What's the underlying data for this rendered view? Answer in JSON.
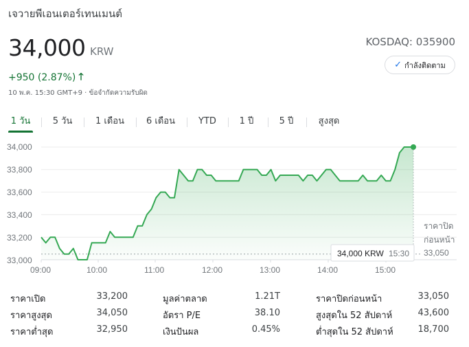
{
  "company_name": "เจวายพีเอนเตอร์เทนเมนต์",
  "price": "34,000",
  "currency": "KRW",
  "exchange": "KOSDAQ: 035900",
  "follow_label": "กำลังติดตาม",
  "change": "+950 (2.87%)",
  "timestamp": "10 พ.ค. 15:30 GMT+9 · ข้อจำกัดความรับผิด",
  "tabs": [
    "1 วัน",
    "5 วัน",
    "1 เดือน",
    "6 เดือน",
    "YTD",
    "1 ปี",
    "5 ปี",
    "สูงสุด"
  ],
  "active_tab": "1 วัน",
  "colors": {
    "up": "#137333",
    "line": "#34a853",
    "accent": "#1a73e8"
  },
  "icons": {
    "follow": "check-icon",
    "change": "arrow-up-icon"
  },
  "chart_data": {
    "type": "line",
    "y_ticks": [
      "34,000",
      "33,800",
      "33,600",
      "33,400",
      "33,200",
      "33,000"
    ],
    "x_ticks": [
      "09:00",
      "10:00",
      "11:00",
      "12:00",
      "13:00",
      "14:00",
      "15:00"
    ],
    "ylim": [
      33000,
      34000
    ],
    "xlim": [
      0,
      400
    ],
    "x": [
      0,
      5,
      10,
      15,
      20,
      25,
      30,
      35,
      40,
      45,
      50,
      55,
      60,
      70,
      75,
      80,
      85,
      90,
      95,
      100,
      105,
      110,
      115,
      120,
      125,
      130,
      135,
      140,
      145,
      150,
      155,
      160,
      165,
      170,
      175,
      180,
      185,
      190,
      195,
      200,
      205,
      210,
      215,
      220,
      225,
      230,
      235,
      240,
      245,
      250,
      255,
      260,
      265,
      270,
      275,
      280,
      285,
      290,
      295,
      300,
      305,
      310,
      315,
      320,
      325,
      330,
      335,
      340,
      345,
      350,
      355,
      360,
      365,
      370,
      375,
      380,
      385,
      390,
      395
    ],
    "y": [
      33200,
      33150,
      33200,
      33200,
      33100,
      33050,
      33050,
      33100,
      33000,
      33000,
      33000,
      33150,
      33150,
      33150,
      33250,
      33200,
      33200,
      33200,
      33200,
      33200,
      33300,
      33300,
      33400,
      33450,
      33550,
      33600,
      33600,
      33550,
      33550,
      33800,
      33750,
      33700,
      33700,
      33800,
      33800,
      33750,
      33750,
      33700,
      33700,
      33700,
      33700,
      33700,
      33700,
      33800,
      33800,
      33800,
      33800,
      33750,
      33750,
      33800,
      33700,
      33750,
      33750,
      33750,
      33750,
      33750,
      33700,
      33750,
      33750,
      33700,
      33750,
      33800,
      33800,
      33750,
      33700,
      33700,
      33700,
      33700,
      33700,
      33750,
      33700,
      33700,
      33700,
      33750,
      33700,
      33700,
      33800,
      33950,
      34000
    ],
    "last_x": 405,
    "last_y": 34000,
    "previous_close": 33050,
    "previous_close_label_line1": "ราคาปิด",
    "previous_close_label_line2": "ก่อนหน้า",
    "previous_close_value": "33,050",
    "tooltip_price": "34,000 KRW",
    "tooltip_time": "15:30"
  },
  "stats": {
    "col1": [
      {
        "label": "ราคาเปิด",
        "value": "33,200"
      },
      {
        "label": "ราคาสูงสุด",
        "value": "34,050"
      },
      {
        "label": "ราคาต่ำสุด",
        "value": "32,950"
      }
    ],
    "col2": [
      {
        "label": "มูลค่าตลาด",
        "value": "1.21T"
      },
      {
        "label": "อัตรา P/E",
        "value": "38.10"
      },
      {
        "label": "เงินปันผล",
        "value": "0.45%"
      }
    ],
    "col3": [
      {
        "label": "ราคาปิดก่อนหน้า",
        "value": "33,050"
      },
      {
        "label": "สูงสุดใน 52 สัปดาห์",
        "value": "43,600"
      },
      {
        "label": "ต่ำสุดใน 52 สัปดาห์",
        "value": "18,700"
      }
    ]
  }
}
